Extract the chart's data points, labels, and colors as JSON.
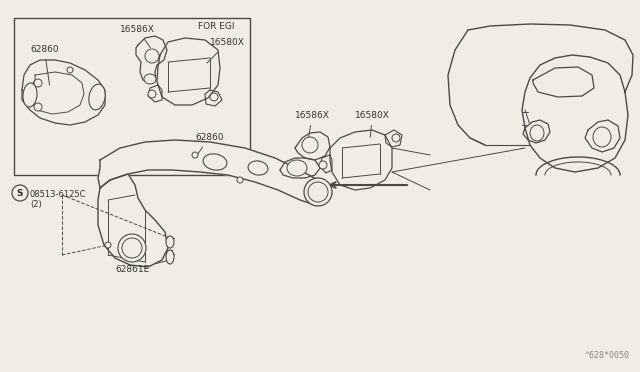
{
  "bg_color": "#f0ede4",
  "line_color": "#4a4a4a",
  "text_color": "#333333",
  "fig_width": 6.4,
  "fig_height": 3.72,
  "dpi": 100,
  "watermark": "^628*0050",
  "labels": {
    "for_egi": "FOR EGI",
    "part_16586X_inset": "16586X",
    "part_16580X_inset": "16580X",
    "part_62860_inset": "62860",
    "part_62860_main": "62860",
    "part_16586X_main": "16586X",
    "part_16580X_main": "16580X",
    "part_08513": "08513-6125C",
    "part_08513_qty": "(2)",
    "part_62861E": "62861E",
    "screw_symbol": "S"
  }
}
